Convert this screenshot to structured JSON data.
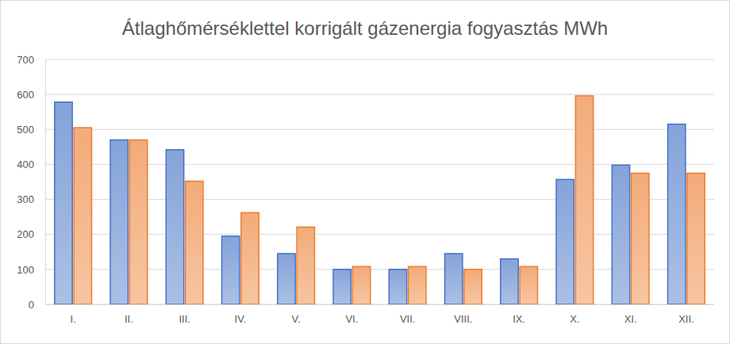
{
  "chart_data": {
    "type": "bar",
    "title": "Átlaghőmérséklettel korrigált gázenergia fogyasztás MWh",
    "categories": [
      "I.",
      "II.",
      "III.",
      "IV.",
      "V.",
      "VI.",
      "VII.",
      "VIII.",
      "IX.",
      "X.",
      "XI.",
      "XII."
    ],
    "series": [
      {
        "color": "#4472c4",
        "values": [
          578,
          470,
          442,
          195,
          145,
          100,
          100,
          145,
          130,
          357,
          398,
          515
        ]
      },
      {
        "color": "#ed7d31",
        "values": [
          505,
          470,
          352,
          262,
          221,
          108,
          108,
          100,
          108,
          596,
          375,
          375
        ]
      }
    ],
    "ylim": [
      0,
      700
    ],
    "yticks": [
      0,
      100,
      200,
      300,
      400,
      500,
      600,
      700
    ],
    "grid": true
  }
}
